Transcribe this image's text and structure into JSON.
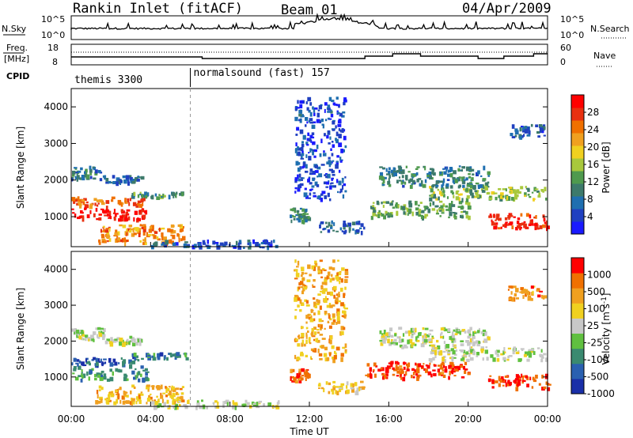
{
  "header": {
    "station": "Rankin Inlet (fitACF)",
    "beam": "Beam 01",
    "date": "04/Apr/2009"
  },
  "top_panels": {
    "nsky_label": "N.Sky",
    "nsky_ticks": [
      "10^5",
      "10^0"
    ],
    "nsearch_label": "N.Search",
    "nsearch_ticks": [
      "10^5",
      "10^0"
    ],
    "freq_label": "Freq.",
    "freq_unit": "[MHz]",
    "freq_ticks": [
      "18",
      "8"
    ],
    "nave_label": "Nave",
    "nave_ticks": [
      "60",
      "0"
    ],
    "cpid_label": "CPID",
    "cpid_segments": [
      {
        "label": "themis 3300",
        "start_hr": 0,
        "end_hr": 6
      },
      {
        "label": "normalsound (fast) 157",
        "start_hr": 6,
        "end_hr": 24
      }
    ]
  },
  "chart_data": [
    {
      "type": "heatmap",
      "name_hint": "power",
      "ylabel": "Slant Range [km]",
      "yticks": [
        "1000",
        "2000",
        "3000",
        "4000"
      ],
      "ylim": [
        180,
        4500
      ],
      "xlim": [
        0,
        24
      ],
      "colorbar": {
        "label": "Power [dB]",
        "ticks": [
          "4",
          "8",
          "12",
          "16",
          "20",
          "24",
          "28"
        ],
        "range": [
          0,
          32
        ],
        "colors": [
          "#1a1aff",
          "#2040c0",
          "#1f6fb0",
          "#3d7a6b",
          "#4f9a4e",
          "#a8c83c",
          "#f0d020",
          "#f0a020",
          "#f07000",
          "#e83010",
          "#ff0000"
        ]
      },
      "bands": [
        {
          "t0": 0.0,
          "t1": 1.6,
          "r0": 2050,
          "r1": 2400,
          "lvl": 0.28
        },
        {
          "t0": 1.5,
          "t1": 3.5,
          "r0": 1950,
          "r1": 2150,
          "lvl": 0.22
        },
        {
          "t0": 3.0,
          "t1": 5.8,
          "r0": 1550,
          "r1": 1700,
          "lvl": 0.35
        },
        {
          "t0": 0.0,
          "t1": 3.6,
          "r0": 1300,
          "r1": 1560,
          "lvl": 0.78
        },
        {
          "t0": 0.0,
          "t1": 3.8,
          "r0": 950,
          "r1": 1250,
          "lvl": 0.95
        },
        {
          "t0": 1.2,
          "t1": 5.6,
          "r0": 300,
          "r1": 800,
          "lvl": 0.72
        },
        {
          "t0": 4.0,
          "t1": 10.5,
          "r0": 180,
          "r1": 380,
          "lvl": 0.18
        },
        {
          "t0": 11.0,
          "t1": 11.9,
          "r0": 900,
          "r1": 1250,
          "lvl": 0.3
        },
        {
          "t0": 12.4,
          "t1": 14.8,
          "r0": 600,
          "r1": 900,
          "lvl": 0.22
        },
        {
          "t0": 14.8,
          "t1": 20.0,
          "r0": 1000,
          "r1": 1450,
          "lvl": 0.42
        },
        {
          "t0": 15.5,
          "t1": 21.0,
          "r0": 1850,
          "r1": 2400,
          "lvl": 0.3
        },
        {
          "t0": 18.0,
          "t1": 23.9,
          "r0": 1500,
          "r1": 1850,
          "lvl": 0.45
        },
        {
          "t0": 21.0,
          "t1": 24.0,
          "r0": 700,
          "r1": 1100,
          "lvl": 0.92
        },
        {
          "t0": 22.0,
          "t1": 23.8,
          "r0": 3200,
          "r1": 3550,
          "lvl": 0.2
        },
        {
          "t0": 11.2,
          "t1": 13.8,
          "r0": 1500,
          "r1": 4300,
          "lvl": 0.15
        }
      ]
    },
    {
      "type": "heatmap",
      "name_hint": "velocity",
      "ylabel": "Slant Range [km]",
      "yticks": [
        "1000",
        "2000",
        "3000",
        "4000"
      ],
      "ylim": [
        180,
        4500
      ],
      "xlim": [
        0,
        24
      ],
      "xlabel": "Time UT",
      "xticks": [
        "00:00",
        "04:00",
        "08:00",
        "12:00",
        "16:00",
        "20:00",
        "00:00"
      ],
      "colorbar": {
        "label": "Velocity [m s^-1]",
        "ticks": [
          "1000",
          "500",
          "100",
          "25",
          "-25",
          "-100",
          "-500",
          "-1000"
        ],
        "colors": [
          "#1a2fa8",
          "#2a60b0",
          "#3a8a70",
          "#60c040",
          "#c8c8c8",
          "#f0d020",
          "#f0a020",
          "#f07000",
          "#ff0000"
        ]
      },
      "bands": [
        {
          "t0": 0.0,
          "t1": 1.6,
          "r0": 2050,
          "r1": 2400,
          "lvl": 0.5
        },
        {
          "t0": 1.5,
          "t1": 3.5,
          "r0": 1950,
          "r1": 2150,
          "lvl": 0.5
        },
        {
          "t0": 3.0,
          "t1": 5.8,
          "r0": 1550,
          "r1": 1700,
          "lvl": 0.22
        },
        {
          "t0": 0.0,
          "t1": 3.6,
          "r0": 1300,
          "r1": 1560,
          "lvl": 0.18
        },
        {
          "t0": 0.0,
          "t1": 3.8,
          "r0": 950,
          "r1": 1250,
          "lvl": 0.3
        },
        {
          "t0": 1.2,
          "t1": 5.6,
          "r0": 300,
          "r1": 800,
          "lvl": 0.68
        },
        {
          "t0": 4.0,
          "t1": 10.5,
          "r0": 180,
          "r1": 380,
          "lvl": 0.5
        },
        {
          "t0": 11.0,
          "t1": 11.9,
          "r0": 900,
          "r1": 1250,
          "lvl": 0.85
        },
        {
          "t0": 12.4,
          "t1": 14.8,
          "r0": 600,
          "r1": 900,
          "lvl": 0.62
        },
        {
          "t0": 14.8,
          "t1": 20.0,
          "r0": 1000,
          "r1": 1450,
          "lvl": 0.9
        },
        {
          "t0": 15.5,
          "t1": 21.0,
          "r0": 1850,
          "r1": 2400,
          "lvl": 0.5
        },
        {
          "t0": 18.0,
          "t1": 23.9,
          "r0": 1500,
          "r1": 1850,
          "lvl": 0.5
        },
        {
          "t0": 21.0,
          "t1": 24.0,
          "r0": 700,
          "r1": 1100,
          "lvl": 0.9
        },
        {
          "t0": 22.0,
          "t1": 23.8,
          "r0": 3200,
          "r1": 3550,
          "lvl": 0.78
        },
        {
          "t0": 11.2,
          "t1": 13.8,
          "r0": 1500,
          "r1": 4300,
          "lvl": 0.7
        }
      ]
    }
  ]
}
